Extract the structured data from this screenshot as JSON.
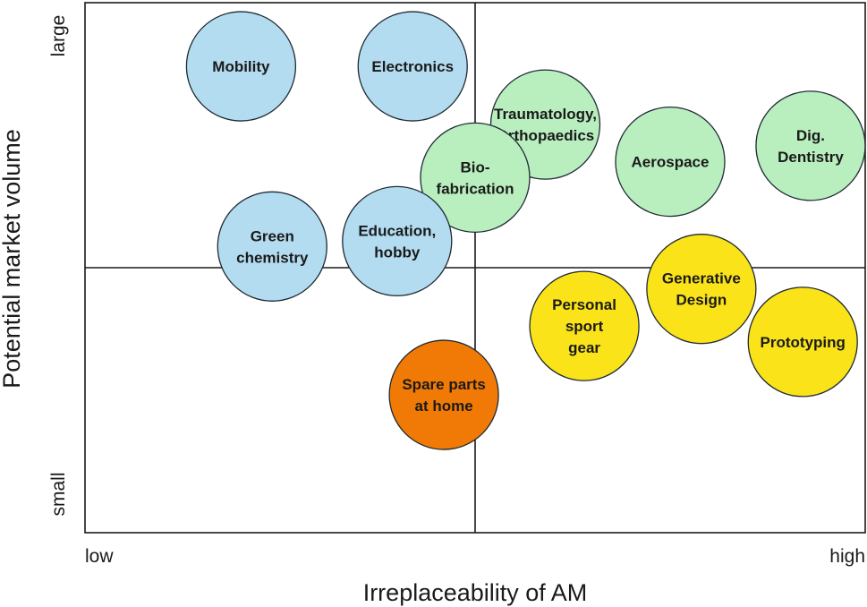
{
  "chart_data": {
    "type": "scatter",
    "title": "",
    "xlabel": "Irreplaceability of AM",
    "ylabel": "Potential market volume",
    "x_ticks": [
      "low",
      "high"
    ],
    "y_ticks": [
      "small",
      "large"
    ],
    "xlim": [
      0,
      100
    ],
    "ylim": [
      0,
      100
    ],
    "quadrant_dividers": {
      "x": 50,
      "y": 50
    },
    "grid": false,
    "legend": "none",
    "colors": {
      "blue": "#b3dcf0",
      "green": "#b9eebf",
      "yellow": "#fae319",
      "orange": "#f07a05"
    },
    "points": [
      {
        "label": [
          "Mobility"
        ],
        "x": 20,
        "y": 88,
        "color": "blue"
      },
      {
        "label": [
          "Electronics"
        ],
        "x": 42,
        "y": 88,
        "color": "blue"
      },
      {
        "label": [
          "Traumatology,",
          "Orthopaedics"
        ],
        "x": 59,
        "y": 77,
        "color": "green"
      },
      {
        "label": [
          "Bio-",
          "fabrication"
        ],
        "x": 50,
        "y": 67,
        "color": "green"
      },
      {
        "label": [
          "Aerospace"
        ],
        "x": 75,
        "y": 70,
        "color": "green"
      },
      {
        "label": [
          "Dig.",
          "Dentistry"
        ],
        "x": 93,
        "y": 73,
        "color": "green"
      },
      {
        "label": [
          "Green",
          "chemistry"
        ],
        "x": 24,
        "y": 54,
        "color": "blue"
      },
      {
        "label": [
          "Education,",
          "hobby"
        ],
        "x": 40,
        "y": 55,
        "color": "blue"
      },
      {
        "label": [
          "Generative",
          "Design"
        ],
        "x": 79,
        "y": 46,
        "color": "yellow"
      },
      {
        "label": [
          "Personal",
          "sport",
          "gear"
        ],
        "x": 64,
        "y": 39,
        "color": "yellow"
      },
      {
        "label": [
          "Prototyping"
        ],
        "x": 92,
        "y": 36,
        "color": "yellow"
      },
      {
        "label": [
          "Spare parts",
          "at home"
        ],
        "x": 46,
        "y": 26,
        "color": "orange"
      }
    ]
  }
}
